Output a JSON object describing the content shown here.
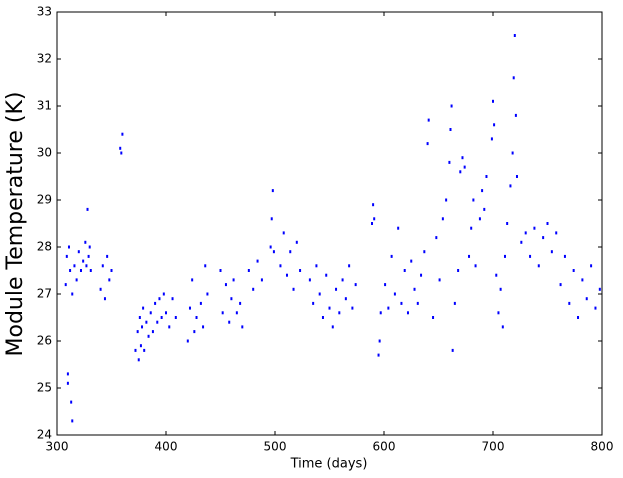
{
  "chart_data": {
    "type": "scatter",
    "xlabel": "Time (days)",
    "ylabel": "Module Temperature (K)",
    "color": "#0000ff",
    "xlim": [
      300,
      800
    ],
    "xticks": [
      300,
      400,
      500,
      600,
      700,
      800
    ],
    "ylim": [
      24,
      33
    ],
    "yticks": [
      24,
      25,
      26,
      27,
      28,
      29,
      30,
      31,
      32,
      33
    ],
    "x": [
      308,
      309,
      310,
      310,
      311,
      312,
      313,
      314,
      314,
      316,
      318,
      320,
      322,
      324,
      326,
      327,
      328,
      329,
      330,
      331,
      340,
      342,
      344,
      346,
      348,
      350,
      358,
      359,
      360,
      372,
      374,
      375,
      376,
      377,
      378,
      379,
      380,
      382,
      384,
      386,
      388,
      390,
      392,
      394,
      396,
      398,
      400,
      403,
      406,
      409,
      420,
      422,
      424,
      426,
      428,
      432,
      434,
      436,
      438,
      450,
      452,
      455,
      458,
      460,
      462,
      465,
      468,
      470,
      476,
      480,
      484,
      488,
      496,
      497,
      498,
      499,
      505,
      508,
      511,
      514,
      517,
      520,
      523,
      532,
      535,
      538,
      541,
      544,
      547,
      550,
      553,
      556,
      559,
      562,
      565,
      568,
      571,
      574,
      589,
      590,
      591,
      595,
      596,
      597,
      601,
      604,
      607,
      610,
      613,
      616,
      619,
      622,
      625,
      628,
      631,
      634,
      637,
      640,
      641,
      645,
      648,
      651,
      654,
      657,
      660,
      661,
      662,
      663,
      665,
      668,
      670,
      672,
      674,
      678,
      680,
      682,
      684,
      688,
      690,
      692,
      694,
      699,
      700,
      701,
      703,
      705,
      707,
      709,
      711,
      713,
      716,
      718,
      719,
      720,
      721,
      722,
      726,
      730,
      734,
      738,
      742,
      746,
      750,
      754,
      758,
      762,
      766,
      770,
      774,
      778,
      782,
      786,
      790,
      794,
      798
    ],
    "values": [
      27.2,
      27.8,
      25.3,
      25.1,
      28.0,
      27.5,
      24.7,
      24.3,
      27.0,
      27.6,
      27.3,
      27.9,
      27.5,
      27.7,
      28.1,
      27.6,
      28.8,
      27.8,
      28.0,
      27.5,
      27.1,
      27.6,
      26.9,
      27.8,
      27.3,
      27.5,
      30.1,
      30.0,
      30.4,
      25.8,
      26.2,
      25.6,
      26.5,
      25.9,
      26.3,
      26.7,
      25.8,
      26.4,
      26.1,
      26.6,
      26.2,
      26.8,
      26.4,
      26.9,
      26.5,
      27.0,
      26.6,
      26.3,
      26.9,
      26.5,
      26.0,
      26.7,
      27.3,
      26.2,
      26.5,
      26.8,
      26.3,
      27.6,
      27.0,
      27.5,
      26.6,
      27.2,
      26.4,
      26.9,
      27.3,
      26.6,
      26.8,
      26.3,
      27.5,
      27.1,
      27.7,
      27.3,
      28.0,
      28.6,
      29.2,
      27.9,
      27.6,
      28.3,
      27.4,
      27.9,
      27.1,
      28.1,
      27.5,
      27.3,
      26.8,
      27.6,
      27.0,
      26.5,
      27.4,
      26.7,
      26.3,
      27.1,
      26.6,
      27.3,
      26.9,
      27.6,
      26.7,
      27.2,
      28.5,
      28.9,
      28.6,
      25.7,
      26.0,
      26.6,
      27.2,
      26.7,
      27.8,
      27.0,
      28.4,
      26.8,
      27.5,
      26.6,
      27.7,
      27.1,
      26.8,
      27.4,
      27.9,
      30.2,
      30.7,
      26.5,
      28.2,
      27.3,
      28.6,
      29.0,
      29.8,
      30.5,
      31.0,
      25.8,
      26.8,
      27.5,
      29.6,
      29.9,
      29.7,
      27.8,
      28.4,
      29.0,
      27.6,
      28.6,
      29.2,
      28.8,
      29.5,
      30.3,
      31.1,
      30.6,
      27.4,
      26.6,
      27.1,
      26.3,
      27.8,
      28.5,
      29.3,
      30.0,
      31.6,
      32.5,
      30.8,
      29.5,
      28.1,
      28.3,
      27.8,
      28.4,
      27.6,
      28.2,
      28.5,
      27.9,
      28.3,
      27.2,
      27.8,
      26.8,
      27.5,
      26.5,
      27.3,
      26.9,
      27.6,
      26.7,
      27.1
    ]
  }
}
